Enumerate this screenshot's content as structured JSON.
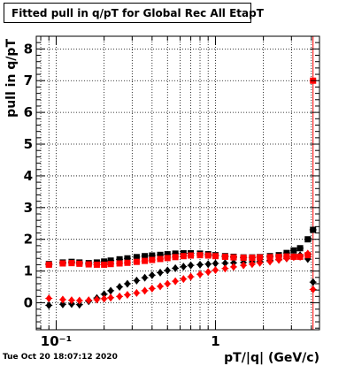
{
  "footer": {
    "timestamp": "Tue Oct 20 18:07:12 2020"
  },
  "colors": {
    "series_black": "#000000",
    "series_red": "#ff0000",
    "grid": "#000000",
    "frame": "#000000",
    "vertical_line": "#ff0000"
  },
  "chart_data": {
    "type": "scatter",
    "title": "Fitted pull in q/pT for Global Rec All EtapT",
    "xlabel": "pT/|q| (GeV/c)",
    "ylabel": "pull in q/pT",
    "x_scale": "log",
    "xlim": [
      0.075,
      4.5
    ],
    "ylim": [
      -0.85,
      8.4
    ],
    "grid": true,
    "x_ticks": [
      {
        "value": 0.1,
        "label": "10⁻¹"
      },
      {
        "value": 1,
        "label": "1"
      }
    ],
    "y_ticks": [
      0,
      1,
      2,
      3,
      4,
      5,
      6,
      7,
      8
    ],
    "reference_line_x": 4.1,
    "series": [
      {
        "marker": "square",
        "color": "#000000",
        "x": [
          0.09,
          0.11,
          0.125,
          0.14,
          0.16,
          0.18,
          0.2,
          0.22,
          0.25,
          0.28,
          0.32,
          0.36,
          0.4,
          0.45,
          0.5,
          0.56,
          0.63,
          0.7,
          0.8,
          0.9,
          1.0,
          1.15,
          1.3,
          1.5,
          1.7,
          1.9,
          2.2,
          2.5,
          2.8,
          3.1,
          3.4,
          3.8,
          4.1
        ],
        "y": [
          1.22,
          1.27,
          1.29,
          1.27,
          1.25,
          1.27,
          1.3,
          1.33,
          1.37,
          1.4,
          1.44,
          1.47,
          1.49,
          1.51,
          1.53,
          1.55,
          1.56,
          1.56,
          1.55,
          1.53,
          1.5,
          1.47,
          1.45,
          1.43,
          1.43,
          1.44,
          1.47,
          1.5,
          1.57,
          1.65,
          1.72,
          2.0,
          2.3
        ]
      },
      {
        "marker": "diamond",
        "color": "#000000",
        "x": [
          0.09,
          0.11,
          0.125,
          0.14,
          0.16,
          0.18,
          0.2,
          0.22,
          0.25,
          0.28,
          0.32,
          0.36,
          0.4,
          0.45,
          0.5,
          0.56,
          0.63,
          0.7,
          0.8,
          0.9,
          1.0,
          1.15,
          1.3,
          1.5,
          1.7,
          1.9,
          2.2,
          2.5,
          2.8,
          3.1,
          3.4,
          3.8,
          4.1
        ],
        "y": [
          -0.08,
          -0.05,
          -0.04,
          -0.06,
          0.05,
          0.15,
          0.27,
          0.38,
          0.5,
          0.6,
          0.7,
          0.79,
          0.87,
          0.95,
          1.02,
          1.09,
          1.14,
          1.18,
          1.2,
          1.22,
          1.24,
          1.25,
          1.26,
          1.27,
          1.29,
          1.3,
          1.33,
          1.36,
          1.4,
          1.45,
          1.5,
          1.38,
          0.65
        ]
      },
      {
        "marker": "square",
        "color": "#ff0000",
        "x": [
          0.09,
          0.11,
          0.125,
          0.14,
          0.16,
          0.18,
          0.2,
          0.22,
          0.25,
          0.28,
          0.32,
          0.36,
          0.4,
          0.45,
          0.5,
          0.56,
          0.63,
          0.7,
          0.8,
          0.9,
          1.0,
          1.15,
          1.3,
          1.5,
          1.7,
          1.9,
          2.2,
          2.5,
          2.8,
          3.1,
          3.4,
          3.8,
          4.1
        ],
        "y": [
          1.2,
          1.24,
          1.25,
          1.23,
          1.21,
          1.2,
          1.2,
          1.22,
          1.24,
          1.26,
          1.29,
          1.32,
          1.35,
          1.38,
          1.41,
          1.44,
          1.47,
          1.49,
          1.5,
          1.49,
          1.47,
          1.45,
          1.43,
          1.42,
          1.42,
          1.43,
          1.44,
          1.45,
          1.46,
          1.45,
          1.45,
          1.5,
          7.0
        ]
      },
      {
        "marker": "diamond",
        "color": "#ff0000",
        "x": [
          0.09,
          0.11,
          0.125,
          0.14,
          0.16,
          0.18,
          0.2,
          0.22,
          0.25,
          0.28,
          0.32,
          0.36,
          0.4,
          0.45,
          0.5,
          0.56,
          0.63,
          0.7,
          0.8,
          0.9,
          1.0,
          1.15,
          1.3,
          1.5,
          1.7,
          1.9,
          2.2,
          2.5,
          2.8,
          3.1,
          3.4,
          3.8,
          4.1
        ],
        "y": [
          0.14,
          0.1,
          0.08,
          0.07,
          0.08,
          0.1,
          0.13,
          0.16,
          0.2,
          0.25,
          0.31,
          0.38,
          0.45,
          0.52,
          0.6,
          0.68,
          0.75,
          0.82,
          0.9,
          0.97,
          1.03,
          1.08,
          1.13,
          1.18,
          1.22,
          1.26,
          1.3,
          1.35,
          1.4,
          1.44,
          1.45,
          1.55,
          0.42
        ]
      }
    ]
  }
}
